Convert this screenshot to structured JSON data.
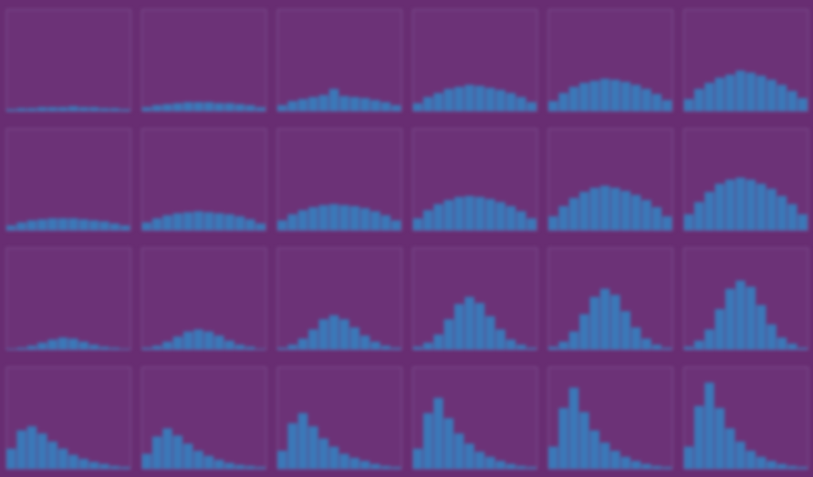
{
  "chart_data": [
    {
      "type": "histogram",
      "bins": [
        0,
        1,
        2,
        3,
        4,
        5,
        6,
        7,
        8,
        9,
        10,
        11,
        12
      ],
      "counts": [
        2,
        3,
        3,
        4,
        4,
        4,
        5,
        4,
        4,
        3,
        3,
        2
      ],
      "color": "#3b78b8",
      "xlim": [
        0,
        12
      ],
      "ylim": [
        0,
        100
      ],
      "tick_labels": false
    },
    {
      "type": "histogram",
      "bins": [
        0,
        1,
        2,
        3,
        4,
        5,
        6,
        7,
        8,
        9,
        10,
        11,
        12
      ],
      "counts": [
        4,
        6,
        7,
        8,
        9,
        9,
        9,
        8,
        8,
        7,
        6,
        4
      ],
      "color": "#3b78b8",
      "xlim": [
        0,
        12
      ],
      "ylim": [
        0,
        100
      ],
      "tick_labels": false
    },
    {
      "type": "histogram",
      "bins": [
        0,
        1,
        2,
        3,
        4,
        5,
        6,
        7,
        8,
        9,
        10,
        11,
        12
      ],
      "counts": [
        6,
        10,
        12,
        14,
        16,
        22,
        15,
        14,
        13,
        11,
        9,
        6
      ],
      "color": "#3b78b8",
      "xlim": [
        0,
        12
      ],
      "ylim": [
        0,
        100
      ],
      "tick_labels": false
    },
    {
      "type": "histogram",
      "bins": [
        0,
        1,
        2,
        3,
        4,
        5,
        6,
        7,
        8,
        9,
        10,
        11,
        12
      ],
      "counts": [
        8,
        14,
        18,
        22,
        24,
        26,
        25,
        23,
        21,
        18,
        14,
        9
      ],
      "color": "#3b78b8",
      "xlim": [
        0,
        12
      ],
      "ylim": [
        0,
        100
      ],
      "tick_labels": false
    },
    {
      "type": "histogram",
      "bins": [
        0,
        1,
        2,
        3,
        4,
        5,
        6,
        7,
        8,
        9,
        10,
        11,
        12
      ],
      "counts": [
        10,
        18,
        24,
        28,
        30,
        32,
        31,
        29,
        26,
        22,
        17,
        11
      ],
      "color": "#3b78b8",
      "xlim": [
        0,
        12
      ],
      "ylim": [
        0,
        100
      ],
      "tick_labels": false
    },
    {
      "type": "histogram",
      "bins": [
        0,
        1,
        2,
        3,
        4,
        5,
        6,
        7,
        8,
        9,
        10,
        11,
        12
      ],
      "counts": [
        12,
        22,
        28,
        33,
        36,
        40,
        38,
        35,
        31,
        26,
        20,
        13
      ],
      "color": "#3b78b8",
      "xlim": [
        0,
        12
      ],
      "ylim": [
        0,
        100
      ],
      "tick_labels": false
    },
    {
      "type": "histogram",
      "bins": [
        0,
        1,
        2,
        3,
        4,
        5,
        6,
        7,
        8,
        9,
        10,
        11,
        12
      ],
      "counts": [
        5,
        8,
        10,
        11,
        12,
        12,
        12,
        11,
        10,
        9,
        7,
        5
      ],
      "color": "#3b78b8",
      "xlim": [
        0,
        12
      ],
      "ylim": [
        0,
        100
      ],
      "tick_labels": false
    },
    {
      "type": "histogram",
      "bins": [
        0,
        1,
        2,
        3,
        4,
        5,
        6,
        7,
        8,
        9,
        10,
        11,
        12
      ],
      "counts": [
        8,
        12,
        15,
        17,
        18,
        19,
        18,
        17,
        16,
        14,
        11,
        7
      ],
      "color": "#3b78b8",
      "xlim": [
        0,
        12
      ],
      "ylim": [
        0,
        100
      ],
      "tick_labels": false
    },
    {
      "type": "histogram",
      "bins": [
        0,
        1,
        2,
        3,
        4,
        5,
        6,
        7,
        8,
        9,
        10,
        11,
        12
      ],
      "counts": [
        10,
        16,
        20,
        23,
        25,
        26,
        25,
        24,
        22,
        19,
        15,
        10
      ],
      "color": "#3b78b8",
      "xlim": [
        0,
        12
      ],
      "ylim": [
        0,
        100
      ],
      "tick_labels": false
    },
    {
      "type": "histogram",
      "bins": [
        0,
        1,
        2,
        3,
        4,
        5,
        6,
        7,
        8,
        9,
        10,
        11,
        12
      ],
      "counts": [
        12,
        20,
        26,
        30,
        33,
        34,
        33,
        31,
        28,
        24,
        19,
        12
      ],
      "color": "#3b78b8",
      "xlim": [
        0,
        12
      ],
      "ylim": [
        0,
        100
      ],
      "tick_labels": false
    },
    {
      "type": "histogram",
      "bins": [
        0,
        1,
        2,
        3,
        4,
        5,
        6,
        7,
        8,
        9,
        10,
        11,
        12
      ],
      "counts": [
        14,
        24,
        32,
        38,
        42,
        44,
        42,
        39,
        35,
        30,
        23,
        14
      ],
      "color": "#3b78b8",
      "xlim": [
        0,
        12
      ],
      "ylim": [
        0,
        100
      ],
      "tick_labels": false
    },
    {
      "type": "histogram",
      "bins": [
        0,
        1,
        2,
        3,
        4,
        5,
        6,
        7,
        8,
        9,
        10,
        11,
        12
      ],
      "counts": [
        16,
        28,
        38,
        46,
        50,
        52,
        50,
        46,
        41,
        34,
        26,
        16
      ],
      "color": "#3b78b8",
      "xlim": [
        0,
        12
      ],
      "ylim": [
        0,
        100
      ],
      "tick_labels": false
    },
    {
      "type": "histogram",
      "bins": [
        0,
        1,
        2,
        3,
        4,
        5,
        6,
        7,
        8,
        9,
        10,
        11,
        12
      ],
      "counts": [
        1,
        2,
        4,
        7,
        10,
        12,
        11,
        8,
        5,
        3,
        2,
        1
      ],
      "color": "#3b78b8",
      "xlim": [
        0,
        12
      ],
      "ylim": [
        0,
        100
      ],
      "tick_labels": false
    },
    {
      "type": "histogram",
      "bins": [
        0,
        1,
        2,
        3,
        4,
        5,
        6,
        7,
        8,
        9,
        10,
        11,
        12
      ],
      "counts": [
        2,
        4,
        8,
        13,
        18,
        20,
        18,
        14,
        9,
        5,
        3,
        1
      ],
      "color": "#3b78b8",
      "xlim": [
        0,
        12
      ],
      "ylim": [
        0,
        100
      ],
      "tick_labels": false
    },
    {
      "type": "histogram",
      "bins": [
        0,
        1,
        2,
        3,
        4,
        5,
        6,
        7,
        8,
        9,
        10,
        11,
        12
      ],
      "counts": [
        2,
        5,
        11,
        20,
        30,
        34,
        30,
        22,
        14,
        8,
        4,
        2
      ],
      "color": "#3b78b8",
      "xlim": [
        0,
        12
      ],
      "ylim": [
        0,
        100
      ],
      "tick_labels": false
    },
    {
      "type": "histogram",
      "bins": [
        0,
        1,
        2,
        3,
        4,
        5,
        6,
        7,
        8,
        9,
        10,
        11,
        12
      ],
      "counts": [
        3,
        7,
        15,
        30,
        45,
        52,
        46,
        33,
        20,
        10,
        5,
        2
      ],
      "color": "#3b78b8",
      "xlim": [
        0,
        12
      ],
      "ylim": [
        0,
        100
      ],
      "tick_labels": false
    },
    {
      "type": "histogram",
      "bins": [
        0,
        1,
        2,
        3,
        4,
        5,
        6,
        7,
        8,
        9,
        10,
        11,
        12
      ],
      "counts": [
        3,
        8,
        18,
        35,
        52,
        60,
        54,
        38,
        22,
        11,
        5,
        2
      ],
      "color": "#3b78b8",
      "xlim": [
        0,
        12
      ],
      "ylim": [
        0,
        100
      ],
      "tick_labels": false
    },
    {
      "type": "histogram",
      "bins": [
        0,
        1,
        2,
        3,
        4,
        5,
        6,
        7,
        8,
        9,
        10,
        11,
        12
      ],
      "counts": [
        3,
        9,
        20,
        40,
        60,
        68,
        62,
        44,
        25,
        12,
        6,
        2
      ],
      "color": "#3b78b8",
      "xlim": [
        0,
        12
      ],
      "ylim": [
        0,
        100
      ],
      "tick_labels": false
    },
    {
      "type": "histogram",
      "bins": [
        0,
        1,
        2,
        3,
        4,
        5,
        6,
        7,
        8,
        9,
        10,
        11,
        12
      ],
      "counts": [
        20,
        38,
        42,
        35,
        27,
        20,
        14,
        10,
        7,
        5,
        3,
        2
      ],
      "color": "#3b78b8",
      "xlim": [
        0,
        12
      ],
      "ylim": [
        0,
        100
      ],
      "tick_labels": false
    },
    {
      "type": "histogram",
      "bins": [
        0,
        1,
        2,
        3,
        4,
        5,
        6,
        7,
        8,
        9,
        10,
        11,
        12
      ],
      "counts": [
        15,
        32,
        40,
        33,
        25,
        18,
        13,
        9,
        6,
        4,
        3,
        2
      ],
      "color": "#3b78b8",
      "xlim": [
        0,
        12
      ],
      "ylim": [
        0,
        100
      ],
      "tick_labels": false
    },
    {
      "type": "histogram",
      "bins": [
        0,
        1,
        2,
        3,
        4,
        5,
        6,
        7,
        8,
        9,
        10,
        11,
        12
      ],
      "counts": [
        18,
        45,
        55,
        42,
        30,
        22,
        15,
        11,
        8,
        5,
        3,
        2
      ],
      "color": "#3b78b8",
      "xlim": [
        0,
        12
      ],
      "ylim": [
        0,
        100
      ],
      "tick_labels": false
    },
    {
      "type": "histogram",
      "bins": [
        0,
        1,
        2,
        3,
        4,
        5,
        6,
        7,
        8,
        9,
        10,
        11,
        12
      ],
      "counts": [
        20,
        55,
        70,
        50,
        35,
        25,
        17,
        12,
        8,
        5,
        3,
        2
      ],
      "color": "#3b78b8",
      "xlim": [
        0,
        12
      ],
      "ylim": [
        0,
        100
      ],
      "tick_labels": false
    },
    {
      "type": "histogram",
      "bins": [
        0,
        1,
        2,
        3,
        4,
        5,
        6,
        7,
        8,
        9,
        10,
        11,
        12
      ],
      "counts": [
        22,
        60,
        80,
        56,
        38,
        26,
        18,
        12,
        8,
        5,
        3,
        2
      ],
      "color": "#3b78b8",
      "xlim": [
        0,
        12
      ],
      "ylim": [
        0,
        100
      ],
      "tick_labels": false
    },
    {
      "type": "histogram",
      "bins": [
        0,
        1,
        2,
        3,
        4,
        5,
        6,
        7,
        8,
        9,
        10,
        11,
        12
      ],
      "counts": [
        22,
        62,
        85,
        60,
        40,
        27,
        18,
        12,
        8,
        5,
        3,
        2
      ],
      "color": "#3b78b8",
      "xlim": [
        0,
        12
      ],
      "ylim": [
        0,
        100
      ],
      "tick_labels": false
    }
  ]
}
